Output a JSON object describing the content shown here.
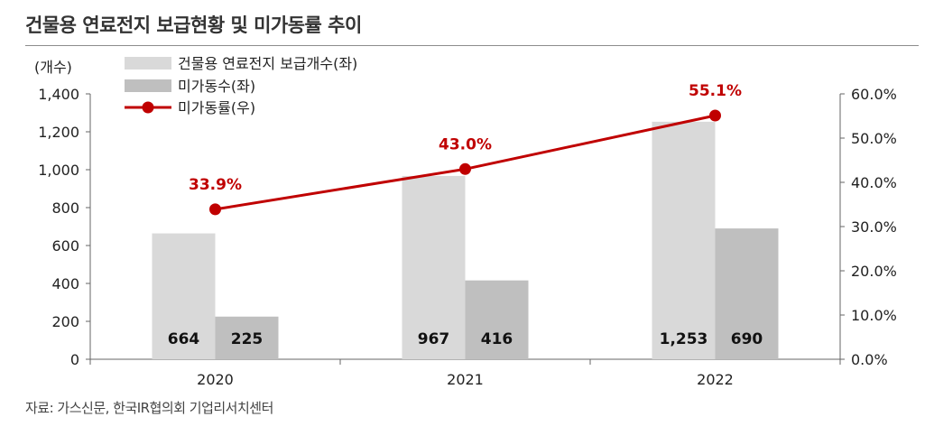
{
  "title": "건물용 연료전지 보급현황 및 미가동률 추이",
  "source": "자료: 가스신문, 한국IR협의회 기업리서치센터",
  "colors": {
    "installed": "#d9d9d9",
    "idle": "#bfbfbf",
    "rate": "#c00000"
  },
  "chart_data": {
    "type": "bar",
    "categories": [
      "2020",
      "2021",
      "2022"
    ],
    "y_left": {
      "unit_label": "(개수)",
      "ylim": [
        0,
        1400
      ],
      "ticks": [
        "0",
        "200",
        "400",
        "600",
        "800",
        "1,000",
        "1,200",
        "1,400"
      ]
    },
    "y_right": {
      "ylim": [
        0,
        60
      ],
      "ticks": [
        "0.0%",
        "10.0%",
        "20.0%",
        "30.0%",
        "40.0%",
        "50.0%",
        "60.0%"
      ]
    },
    "series": [
      {
        "name": "건물용 연료전지 보급개수(좌)",
        "type": "bar",
        "axis": "left",
        "values": [
          664,
          967,
          1253
        ],
        "labels": [
          "664",
          "967",
          "1,253"
        ]
      },
      {
        "name": "미가동수(좌)",
        "type": "bar",
        "axis": "left",
        "values": [
          225,
          416,
          690
        ],
        "labels": [
          "225",
          "416",
          "690"
        ]
      },
      {
        "name": "미가동률(우)",
        "type": "line",
        "axis": "right",
        "values": [
          33.9,
          43.0,
          55.1
        ],
        "labels": [
          "33.9%",
          "43.0%",
          "55.1%"
        ]
      }
    ],
    "legend_position": "top-left",
    "grid": false
  }
}
